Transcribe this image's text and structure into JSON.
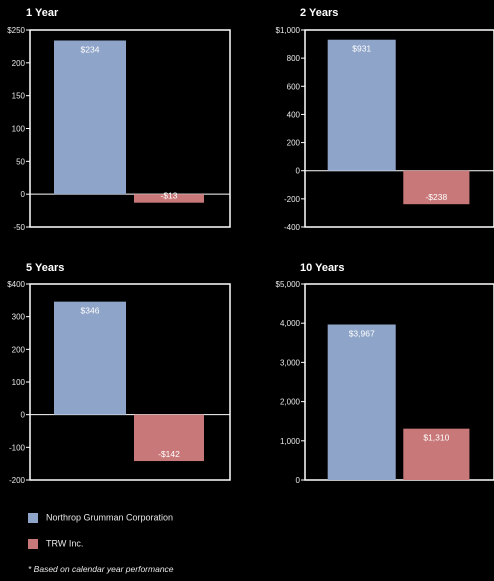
{
  "colors": {
    "series_a": "#8ea4c8",
    "series_b": "#c87878",
    "axis": "#ffffff",
    "background": "#000000"
  },
  "chart_data": [
    {
      "type": "bar",
      "title": "1 Year",
      "series": [
        {
          "name": "Northrop Grumman Corporation",
          "value": 234,
          "label": "$234"
        },
        {
          "name": "TRW Inc.",
          "value": -13,
          "label": "-$13"
        }
      ],
      "ylim": [
        -50,
        250
      ],
      "ticks": [
        {
          "v": 250,
          "label": "$250"
        },
        {
          "v": 200,
          "label": "200"
        },
        {
          "v": 150,
          "label": "150"
        },
        {
          "v": 100,
          "label": "100"
        },
        {
          "v": 50,
          "label": "50"
        },
        {
          "v": 0,
          "label": "0"
        },
        {
          "v": -50,
          "label": "-50"
        }
      ]
    },
    {
      "type": "bar",
      "title": "2 Years",
      "series": [
        {
          "name": "Northrop Grumman Corporation",
          "value": 931,
          "label": "$931"
        },
        {
          "name": "TRW Inc.",
          "value": -238,
          "label": "-$238"
        }
      ],
      "ylim": [
        -400,
        1000
      ],
      "ticks": [
        {
          "v": 1000,
          "label": "$1,000"
        },
        {
          "v": 800,
          "label": "800"
        },
        {
          "v": 600,
          "label": "600"
        },
        {
          "v": 400,
          "label": "400"
        },
        {
          "v": 200,
          "label": "200"
        },
        {
          "v": 0,
          "label": "0"
        },
        {
          "v": -200,
          "label": "-200"
        },
        {
          "v": -400,
          "label": "-400"
        }
      ]
    },
    {
      "type": "bar",
      "title": "5 Years",
      "series": [
        {
          "name": "Northrop Grumman Corporation",
          "value": 346,
          "label": "$346"
        },
        {
          "name": "TRW Inc.",
          "value": -142,
          "label": "-$142"
        }
      ],
      "ylim": [
        -200,
        400
      ],
      "ticks": [
        {
          "v": 400,
          "label": "$400"
        },
        {
          "v": 300,
          "label": "300"
        },
        {
          "v": 200,
          "label": "200"
        },
        {
          "v": 100,
          "label": "100"
        },
        {
          "v": 0,
          "label": "0"
        },
        {
          "v": -100,
          "label": "-100"
        },
        {
          "v": -200,
          "label": "-200"
        }
      ]
    },
    {
      "type": "bar",
      "title": "10 Years",
      "series": [
        {
          "name": "Northrop Grumman Corporation",
          "value": 3967,
          "label": "$3,967"
        },
        {
          "name": "TRW Inc.",
          "value": 1310,
          "label": "$1,310"
        }
      ],
      "ylim": [
        0,
        5000
      ],
      "ticks": [
        {
          "v": 5000,
          "label": "$5,000"
        },
        {
          "v": 4000,
          "label": "4,000"
        },
        {
          "v": 3000,
          "label": "3,000"
        },
        {
          "v": 2000,
          "label": "2,000"
        },
        {
          "v": 1000,
          "label": "1,000"
        },
        {
          "v": 0,
          "label": "0"
        }
      ]
    }
  ],
  "legend": [
    {
      "name": "Northrop Grumman Corporation",
      "color": "#8ea4c8"
    },
    {
      "name": "TRW Inc.",
      "color": "#c87878"
    }
  ],
  "footnote": "* Based on calendar year performance"
}
